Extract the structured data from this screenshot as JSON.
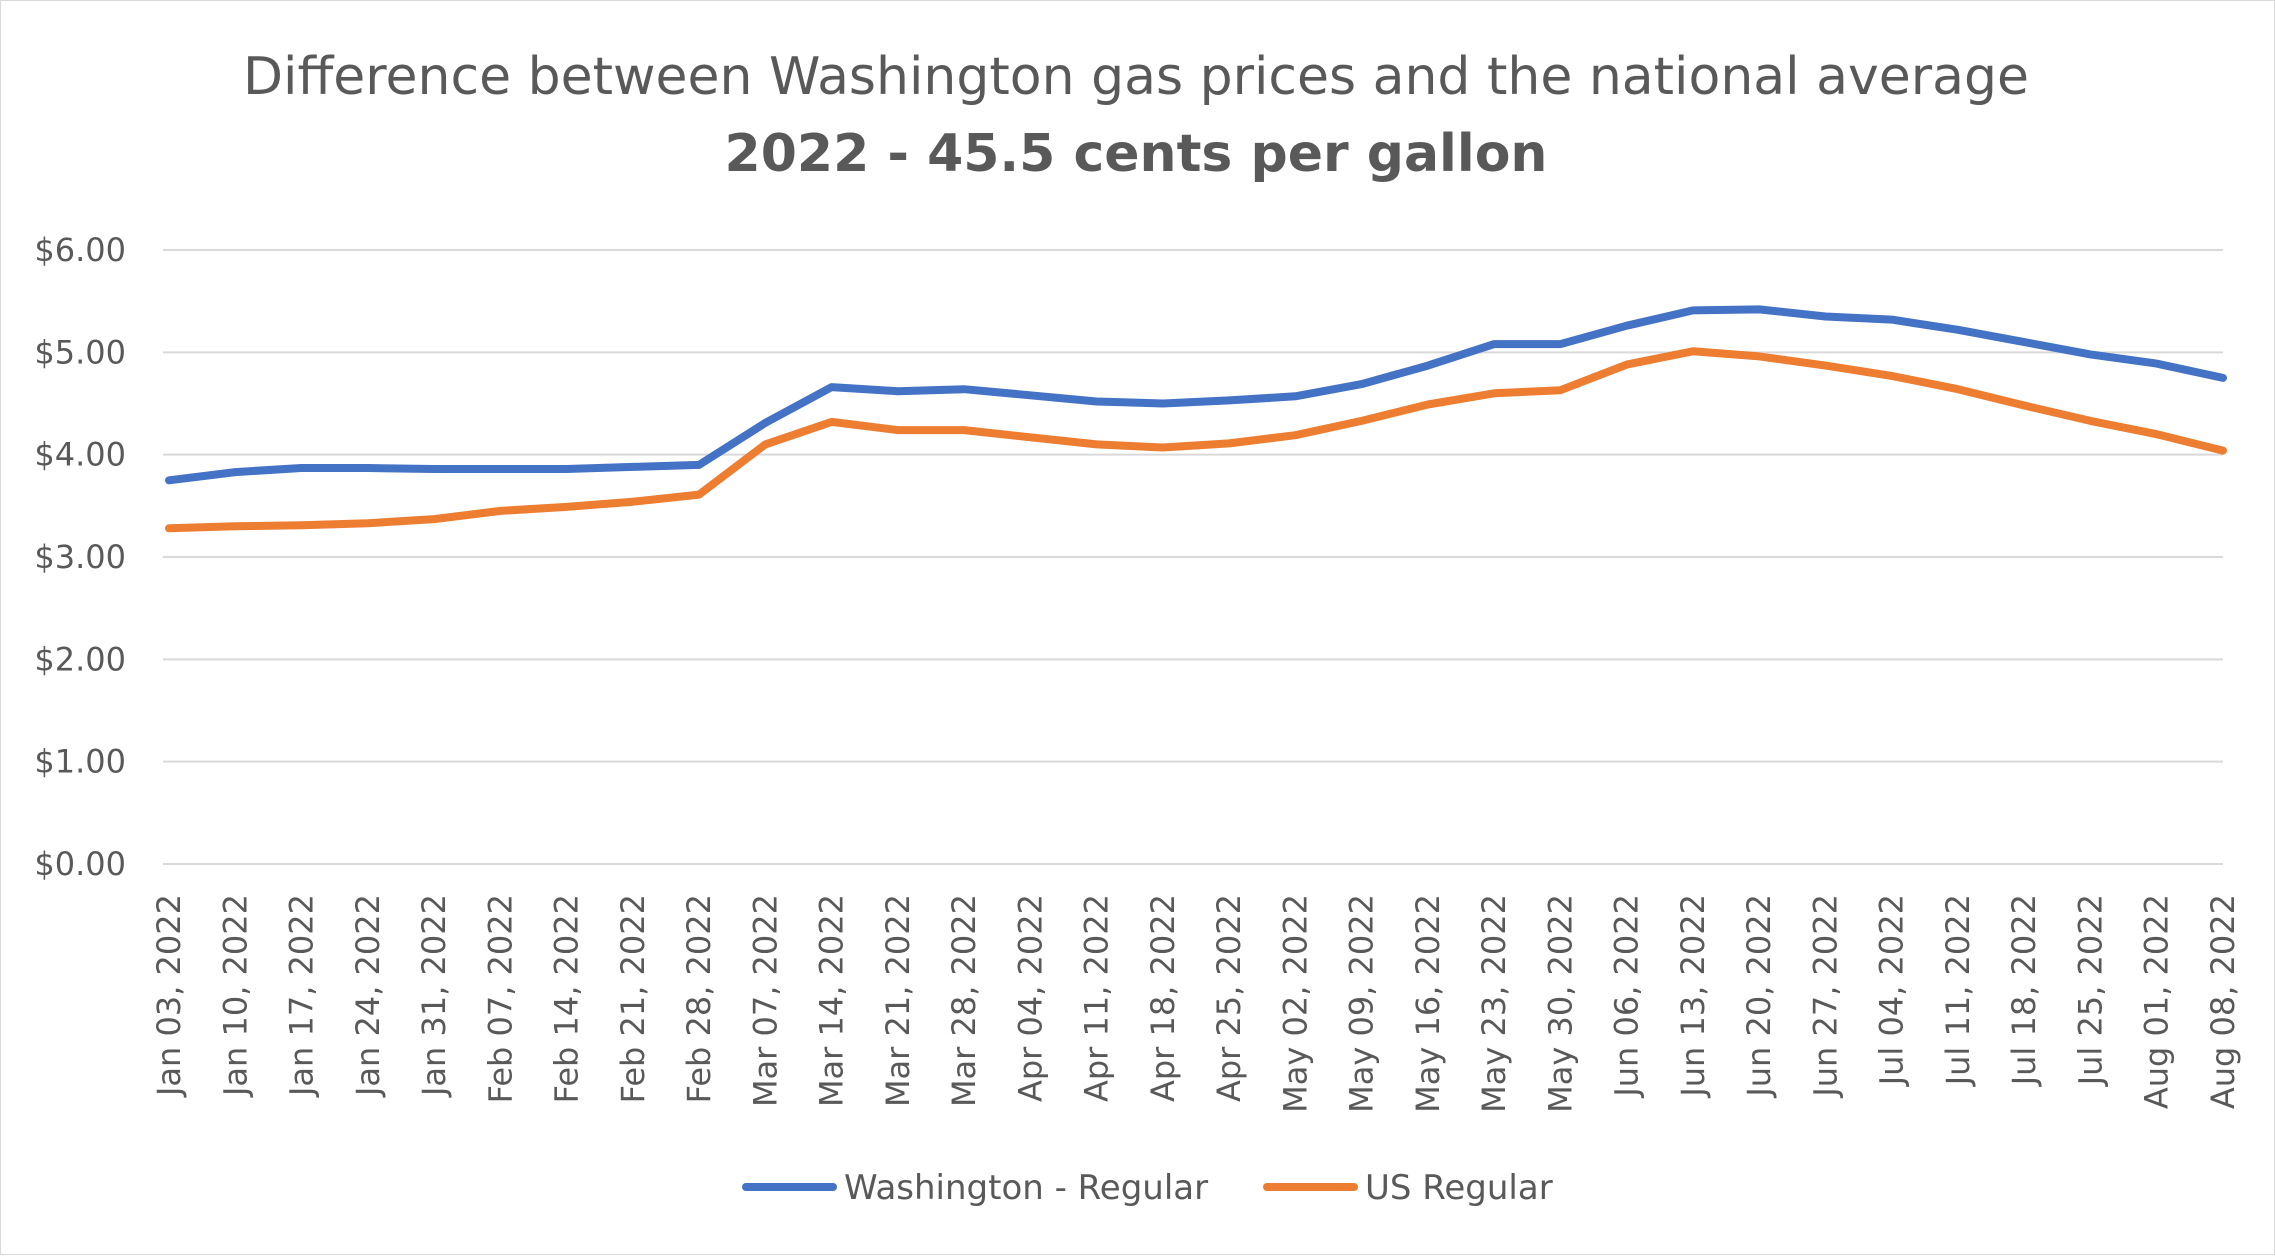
{
  "chart_data": {
    "type": "line",
    "title": "Difference between Washington gas prices and the national average",
    "subtitle": "2022 - 45.5 cents per gallon",
    "xlabel": "",
    "ylabel": "",
    "ylim": [
      0,
      6
    ],
    "y_ticks": [
      "$0.00",
      "$1.00",
      "$2.00",
      "$3.00",
      "$4.00",
      "$5.00",
      "$6.00"
    ],
    "grid": true,
    "legend_position": "bottom",
    "categories": [
      "Jan 03, 2022",
      "Jan 10, 2022",
      "Jan 17, 2022",
      "Jan 24, 2022",
      "Jan 31, 2022",
      "Feb 07, 2022",
      "Feb 14, 2022",
      "Feb 21, 2022",
      "Feb 28, 2022",
      "Mar 07, 2022",
      "Mar 14, 2022",
      "Mar 21, 2022",
      "Mar 28, 2022",
      "Apr 04, 2022",
      "Apr 11, 2022",
      "Apr 18, 2022",
      "Apr 25, 2022",
      "May 02, 2022",
      "May 09, 2022",
      "May 16, 2022",
      "May 23, 2022",
      "May 30, 2022",
      "Jun 06, 2022",
      "Jun 13, 2022",
      "Jun 20, 2022",
      "Jun 27, 2022",
      "Jul 04, 2022",
      "Jul 11, 2022",
      "Jul 18, 2022",
      "Jul 25, 2022",
      "Aug 01, 2022",
      "Aug 08, 2022"
    ],
    "series": [
      {
        "name": "Washington - Regular",
        "color": "#4472c4",
        "values": [
          3.75,
          3.83,
          3.87,
          3.87,
          3.86,
          3.86,
          3.86,
          3.88,
          3.9,
          4.31,
          4.66,
          4.62,
          4.64,
          4.58,
          4.52,
          4.5,
          4.53,
          4.57,
          4.69,
          4.87,
          5.08,
          5.08,
          5.26,
          5.41,
          5.42,
          5.35,
          5.32,
          5.22,
          5.1,
          4.98,
          4.89,
          4.75
        ]
      },
      {
        "name": "US Regular",
        "color": "#ed7d31",
        "values": [
          3.28,
          3.3,
          3.31,
          3.33,
          3.37,
          3.45,
          3.49,
          3.54,
          3.61,
          4.1,
          4.32,
          4.24,
          4.24,
          4.17,
          4.1,
          4.07,
          4.11,
          4.19,
          4.33,
          4.49,
          4.6,
          4.63,
          4.88,
          5.01,
          4.96,
          4.87,
          4.77,
          4.64,
          4.48,
          4.33,
          4.2,
          4.04
        ]
      }
    ]
  }
}
